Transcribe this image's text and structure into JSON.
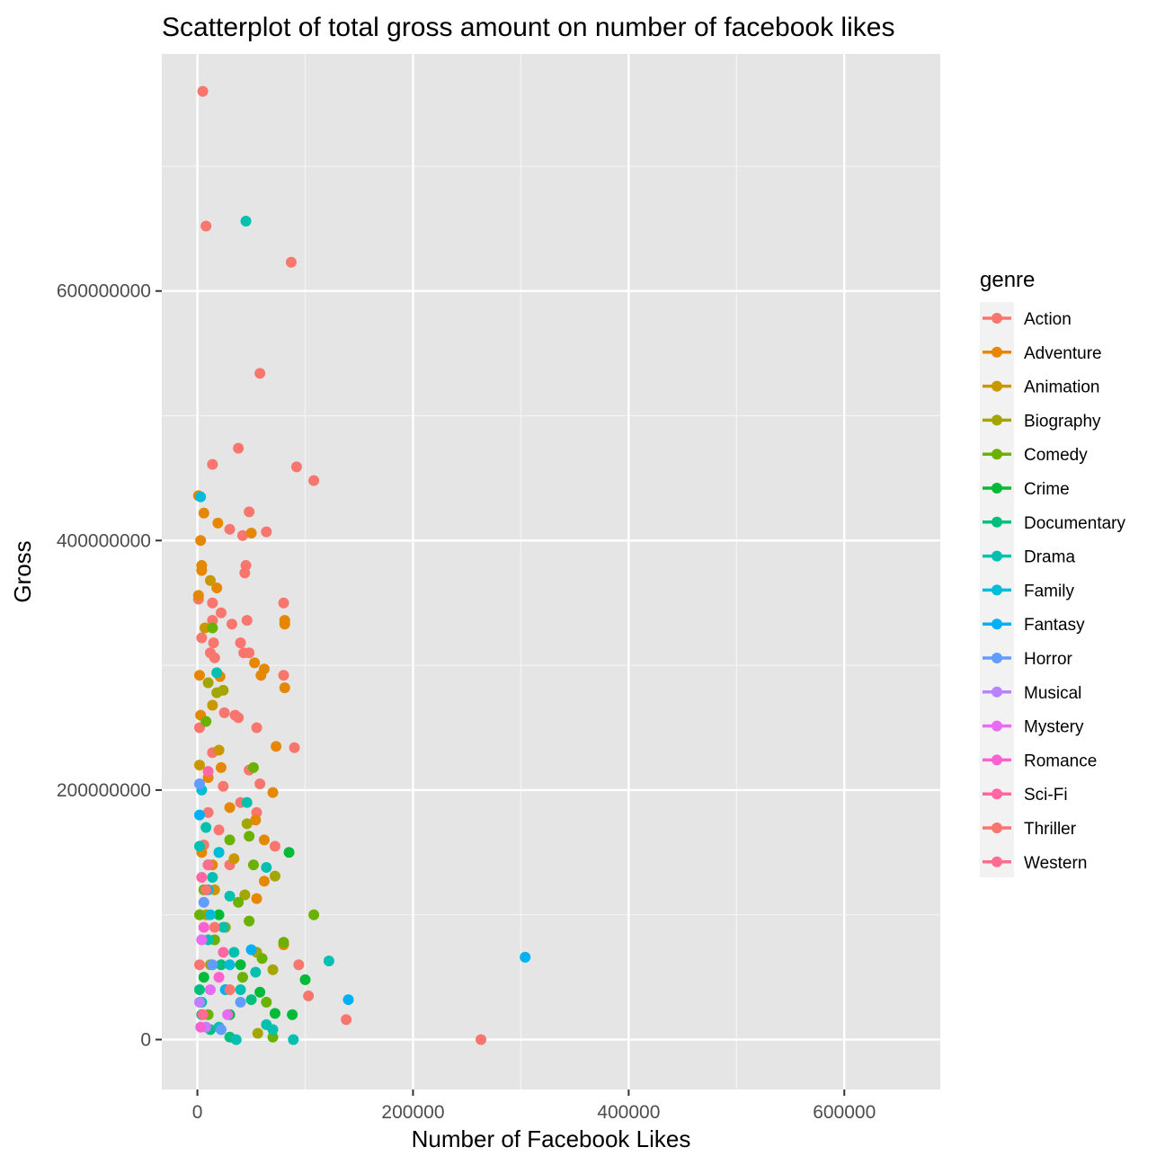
{
  "chart_data": {
    "type": "scatter",
    "title": "Scatterplot of total gross amount on number of facebook likes",
    "xlabel": "Number of Facebook Likes",
    "ylabel": "Gross",
    "xlim": [
      -33000,
      689000
    ],
    "ylim": [
      -40000000,
      790000000
    ],
    "x_ticks": [
      0,
      200000,
      400000,
      600000
    ],
    "x_tick_labels": [
      "0",
      "200000",
      "400000",
      "600000"
    ],
    "y_ticks": [
      0,
      200000000,
      400000000,
      600000000
    ],
    "y_tick_labels": [
      "0",
      "200000000",
      "400000000",
      "600000000"
    ],
    "grid": true,
    "panel_background": "#e5e5e5",
    "grid_color": "#ffffff",
    "legend": {
      "title": "genre",
      "placement": "right",
      "entries": [
        {
          "name": "Action",
          "color": "#F8766D"
        },
        {
          "name": "Adventure",
          "color": "#E58700"
        },
        {
          "name": "Animation",
          "color": "#C99800"
        },
        {
          "name": "Biography",
          "color": "#A3A500"
        },
        {
          "name": "Comedy",
          "color": "#6BB100"
        },
        {
          "name": "Crime",
          "color": "#00BA38"
        },
        {
          "name": "Documentary",
          "color": "#00BF7D"
        },
        {
          "name": "Drama",
          "color": "#00C0AF"
        },
        {
          "name": "Family",
          "color": "#00BCD8"
        },
        {
          "name": "Fantasy",
          "color": "#00B0F6"
        },
        {
          "name": "Horror",
          "color": "#619CFF"
        },
        {
          "name": "Musical",
          "color": "#B983FF"
        },
        {
          "name": "Mystery",
          "color": "#E76BF3"
        },
        {
          "name": "Romance",
          "color": "#FD61D1"
        },
        {
          "name": "Sci-Fi",
          "color": "#FF67A4"
        },
        {
          "name": "Thriller",
          "color": "#F8766D"
        },
        {
          "name": "Western",
          "color": "#FF6C90"
        }
      ]
    },
    "series": [
      {
        "name": "Action",
        "points": [
          [
            5000,
            760000000
          ],
          [
            8000,
            652000000
          ],
          [
            87000,
            623000000
          ],
          [
            58000,
            534000000
          ],
          [
            38000,
            474000000
          ],
          [
            14000,
            461000000
          ],
          [
            92000,
            459000000
          ],
          [
            108000,
            448000000
          ],
          [
            48000,
            423000000
          ],
          [
            30000,
            409000000
          ],
          [
            42000,
            404000000
          ],
          [
            64000,
            407000000
          ],
          [
            45000,
            380000000
          ],
          [
            44000,
            374000000
          ],
          [
            1000,
            353000000
          ],
          [
            14000,
            350000000
          ],
          [
            80000,
            350000000
          ],
          [
            22000,
            342000000
          ],
          [
            14000,
            336000000
          ],
          [
            46000,
            336000000
          ],
          [
            32000,
            333000000
          ],
          [
            4000,
            322000000
          ],
          [
            15000,
            318000000
          ],
          [
            40000,
            318000000
          ],
          [
            12000,
            310000000
          ],
          [
            43000,
            310000000
          ],
          [
            48000,
            310000000
          ],
          [
            16000,
            306000000
          ],
          [
            25000,
            262000000
          ],
          [
            35000,
            260000000
          ],
          [
            38000,
            258000000
          ],
          [
            55000,
            250000000
          ],
          [
            2000,
            250000000
          ],
          [
            90000,
            234000000
          ],
          [
            14000,
            230000000
          ],
          [
            48000,
            216000000
          ],
          [
            58000,
            205000000
          ],
          [
            24000,
            203000000
          ],
          [
            55000,
            182000000
          ],
          [
            72000,
            155000000
          ],
          [
            94000,
            60000000
          ],
          [
            103000,
            35000000
          ],
          [
            138000,
            16000000
          ],
          [
            263000,
            0
          ],
          [
            80000,
            292000000
          ],
          [
            40000,
            190000000
          ],
          [
            10000,
            182000000
          ],
          [
            20000,
            168000000
          ],
          [
            6000,
            156000000
          ],
          [
            30000,
            140000000
          ]
        ]
      },
      {
        "name": "Adventure",
        "points": [
          [
            1000,
            436000000
          ],
          [
            6000,
            422000000
          ],
          [
            19000,
            414000000
          ],
          [
            50000,
            406000000
          ],
          [
            3000,
            400000000
          ],
          [
            4000,
            380000000
          ],
          [
            4000,
            376000000
          ],
          [
            18000,
            362000000
          ],
          [
            1000,
            356000000
          ],
          [
            81000,
            336000000
          ],
          [
            81000,
            333000000
          ],
          [
            2000,
            292000000
          ],
          [
            21000,
            291000000
          ],
          [
            62000,
            297000000
          ],
          [
            59000,
            292000000
          ],
          [
            53000,
            302000000
          ],
          [
            81000,
            282000000
          ],
          [
            3000,
            260000000
          ],
          [
            73000,
            235000000
          ],
          [
            70000,
            198000000
          ],
          [
            54000,
            176000000
          ],
          [
            62000,
            160000000
          ],
          [
            62000,
            127000000
          ],
          [
            55000,
            113000000
          ],
          [
            80000,
            76000000
          ],
          [
            22000,
            218000000
          ],
          [
            10000,
            210000000
          ],
          [
            30000,
            186000000
          ],
          [
            4000,
            150000000
          ],
          [
            14000,
            140000000
          ]
        ]
      },
      {
        "name": "Animation",
        "points": [
          [
            12000,
            368000000
          ],
          [
            7000,
            330000000
          ],
          [
            14000,
            268000000
          ],
          [
            20000,
            232000000
          ],
          [
            2000,
            220000000
          ],
          [
            34000,
            145000000
          ],
          [
            16000,
            120000000
          ],
          [
            8000,
            100000000
          ]
        ]
      },
      {
        "name": "Biography",
        "points": [
          [
            10000,
            286000000
          ],
          [
            18000,
            278000000
          ],
          [
            24000,
            280000000
          ],
          [
            46000,
            173000000
          ],
          [
            44000,
            116000000
          ],
          [
            72000,
            131000000
          ],
          [
            70000,
            56000000
          ],
          [
            55000,
            70000000
          ],
          [
            56000,
            5000000
          ],
          [
            26000,
            90000000
          ],
          [
            12000,
            60000000
          ]
        ]
      },
      {
        "name": "Comedy",
        "points": [
          [
            14000,
            330000000
          ],
          [
            8000,
            255000000
          ],
          [
            52000,
            218000000
          ],
          [
            48000,
            163000000
          ],
          [
            30000,
            160000000
          ],
          [
            52000,
            140000000
          ],
          [
            108000,
            100000000
          ],
          [
            80000,
            78000000
          ],
          [
            60000,
            65000000
          ],
          [
            48000,
            95000000
          ],
          [
            38000,
            110000000
          ],
          [
            20000,
            150000000
          ],
          [
            6000,
            120000000
          ],
          [
            16000,
            80000000
          ],
          [
            64000,
            30000000
          ],
          [
            70000,
            2000000
          ],
          [
            26000,
            40000000
          ],
          [
            10000,
            20000000
          ],
          [
            42000,
            50000000
          ],
          [
            2000,
            100000000
          ]
        ]
      },
      {
        "name": "Crime",
        "points": [
          [
            85000,
            150000000
          ],
          [
            100000,
            48000000
          ],
          [
            72000,
            21000000
          ],
          [
            88000,
            20000000
          ],
          [
            58000,
            38000000
          ],
          [
            40000,
            60000000
          ],
          [
            20000,
            100000000
          ],
          [
            10000,
            140000000
          ],
          [
            30000,
            20000000
          ],
          [
            6000,
            50000000
          ]
        ]
      },
      {
        "name": "Documentary",
        "points": [
          [
            4000,
            20000000
          ],
          [
            12000,
            8000000
          ],
          [
            2000,
            40000000
          ],
          [
            30000,
            2000000
          ],
          [
            50000,
            32000000
          ],
          [
            22000,
            60000000
          ]
        ]
      },
      {
        "name": "Drama",
        "points": [
          [
            45000,
            656000000
          ],
          [
            18000,
            294000000
          ],
          [
            46000,
            190000000
          ],
          [
            64000,
            138000000
          ],
          [
            122000,
            63000000
          ],
          [
            64000,
            12000000
          ],
          [
            70000,
            8000000
          ],
          [
            89000,
            0
          ],
          [
            2000,
            155000000
          ],
          [
            8000,
            170000000
          ],
          [
            14000,
            130000000
          ],
          [
            24000,
            90000000
          ],
          [
            34000,
            70000000
          ],
          [
            40000,
            40000000
          ],
          [
            54000,
            54000000
          ],
          [
            30000,
            115000000
          ],
          [
            10000,
            80000000
          ],
          [
            4000,
            30000000
          ],
          [
            20000,
            10000000
          ],
          [
            36000,
            0
          ]
        ]
      },
      {
        "name": "Family",
        "points": [
          [
            3000,
            435000000
          ],
          [
            4000,
            200000000
          ],
          [
            20000,
            150000000
          ],
          [
            12000,
            100000000
          ],
          [
            30000,
            60000000
          ]
        ]
      },
      {
        "name": "Fantasy",
        "points": [
          [
            304000,
            66000000
          ],
          [
            140000,
            32000000
          ],
          [
            2000,
            180000000
          ],
          [
            10000,
            120000000
          ],
          [
            50000,
            72000000
          ],
          [
            26000,
            40000000
          ]
        ]
      },
      {
        "name": "Horror",
        "points": [
          [
            2000,
            205000000
          ],
          [
            6000,
            110000000
          ],
          [
            14000,
            60000000
          ],
          [
            40000,
            30000000
          ],
          [
            22000,
            8000000
          ]
        ]
      },
      {
        "name": "Musical",
        "points": [
          [
            2000,
            30000000
          ],
          [
            8000,
            10000000
          ]
        ]
      },
      {
        "name": "Mystery",
        "points": [
          [
            4000,
            80000000
          ],
          [
            12000,
            40000000
          ],
          [
            28000,
            20000000
          ]
        ]
      },
      {
        "name": "Romance",
        "points": [
          [
            6000,
            90000000
          ],
          [
            20000,
            50000000
          ],
          [
            3000,
            10000000
          ]
        ]
      },
      {
        "name": "Sci-Fi",
        "points": [
          [
            10000,
            215000000
          ],
          [
            4000,
            130000000
          ],
          [
            24000,
            70000000
          ]
        ]
      },
      {
        "name": "Thriller",
        "points": [
          [
            8000,
            120000000
          ],
          [
            16000,
            90000000
          ],
          [
            30000,
            40000000
          ],
          [
            2000,
            60000000
          ]
        ]
      },
      {
        "name": "Western",
        "points": [
          [
            10000,
            140000000
          ],
          [
            5000,
            20000000
          ]
        ]
      }
    ]
  }
}
